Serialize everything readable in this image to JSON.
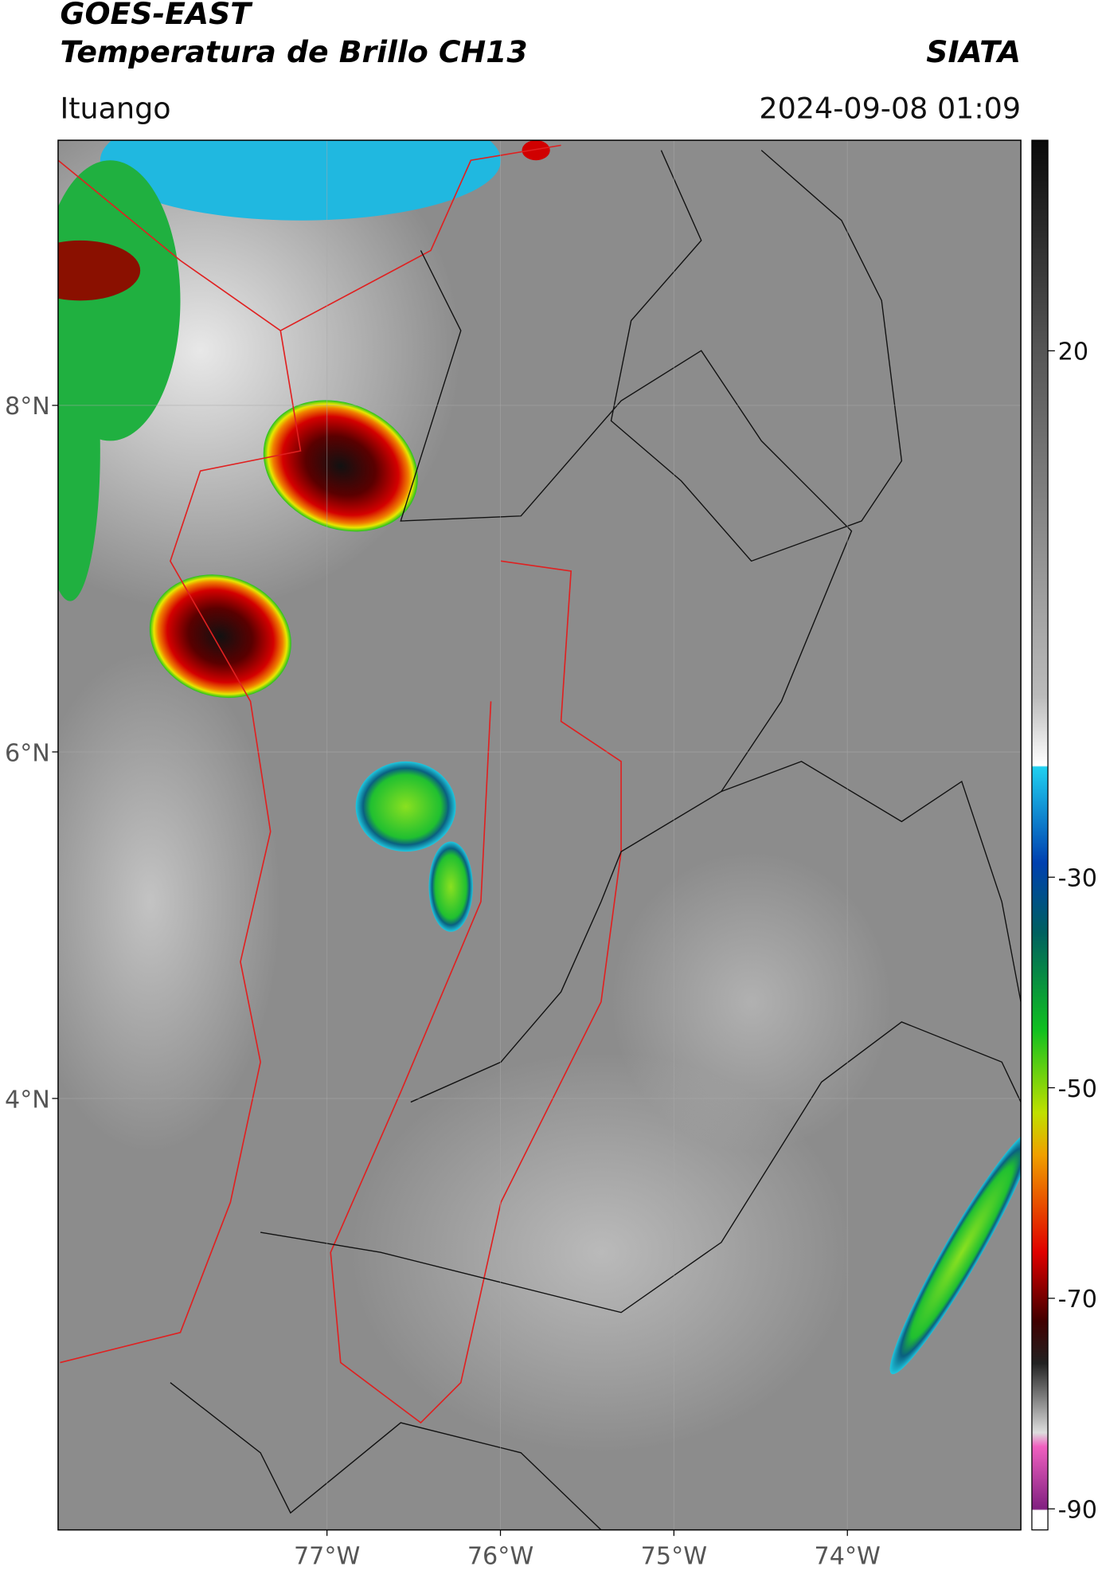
{
  "header": {
    "title": "GOES-EAST",
    "subtitle": "Temperatura de Brillo CH13",
    "source": "SIATA",
    "location": "Ituango",
    "datetime": "2024-09-08 01:09"
  },
  "map": {
    "xlim": [
      -78.55,
      -73.0
    ],
    "ylim": [
      1.51,
      9.53
    ],
    "xticks": [
      {
        "value": -77,
        "label": "77°W"
      },
      {
        "value": -76,
        "label": "76°W"
      },
      {
        "value": -75,
        "label": "75°W"
      },
      {
        "value": -74,
        "label": "74°W"
      }
    ],
    "yticks": [
      {
        "value": 8,
        "label": "8°N"
      },
      {
        "value": 6,
        "label": "6°N"
      },
      {
        "value": 4,
        "label": "4°N"
      }
    ]
  },
  "colorbar": {
    "lim": [
      -92,
      40
    ],
    "ticks": [
      20,
      -30,
      -50,
      -70,
      -90
    ]
  }
}
